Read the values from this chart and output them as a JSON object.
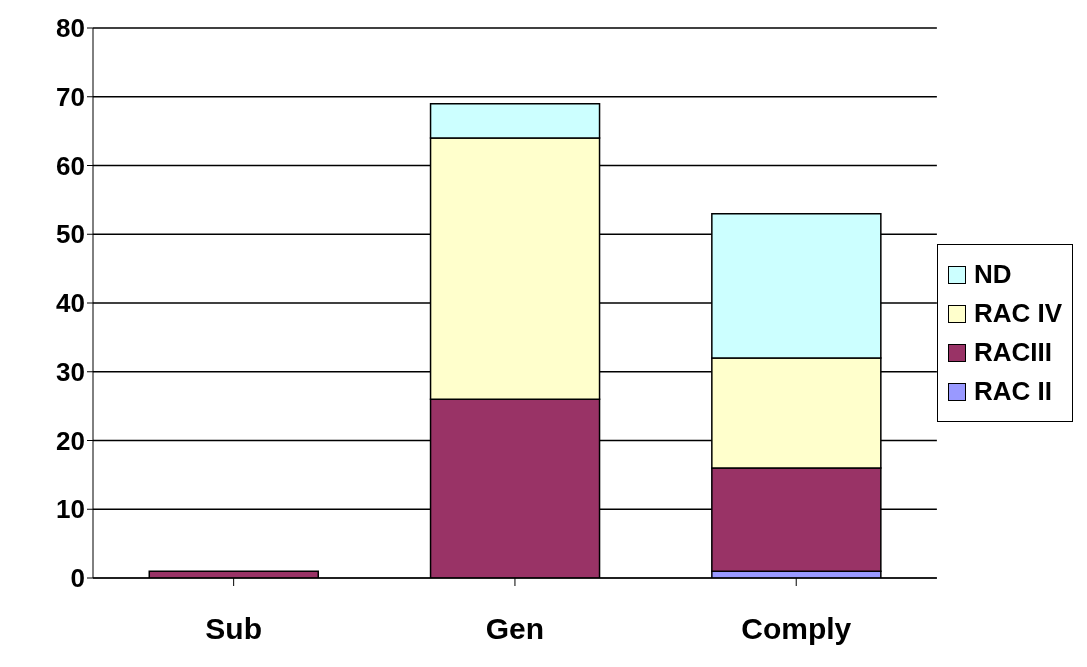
{
  "chart_data": {
    "type": "bar",
    "stacked": true,
    "categories": [
      "Sub",
      "Gen",
      "Comply"
    ],
    "series": [
      {
        "name": "RAC II",
        "color": "#9999ff",
        "values": [
          0,
          0,
          1
        ]
      },
      {
        "name": "RACIII",
        "color": "#993366",
        "values": [
          1,
          26,
          15
        ]
      },
      {
        "name": "RAC IV",
        "color": "#ffffcc",
        "values": [
          0,
          38,
          16
        ]
      },
      {
        "name": "ND",
        "color": "#ccffff",
        "values": [
          0,
          5,
          21
        ]
      }
    ],
    "ylim": [
      0,
      80
    ],
    "yticks": [
      0,
      10,
      20,
      30,
      40,
      50,
      60,
      70,
      80
    ],
    "grid": "y",
    "legend": "right"
  }
}
